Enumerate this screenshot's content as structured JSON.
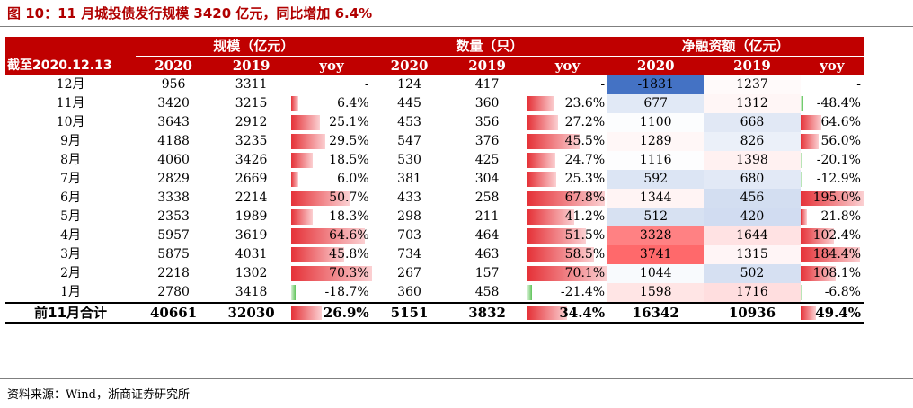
{
  "title": "图 10：11 月城投债发行规模 3420 亿元，同比增加 6.4%",
  "source": "资料来源：Wind，浙商证券研究所",
  "header": {
    "group1": "规模（亿元）",
    "group2": "数量（只）",
    "group3": "净融资额（亿元）",
    "date_label": "截至2020.12.13",
    "col_2020": "2020",
    "col_2019": "2019",
    "col_yoy": "yoy"
  },
  "colors": {
    "header_bg": "#c00000",
    "bar_pos": "#e53238",
    "bar_neg": "#5fc45a",
    "heat_neg": "#4472c4",
    "heat_pos": "#f8696b"
  },
  "rows": [
    {
      "month": "12月",
      "scale_2020": "956",
      "scale_2019": "3311",
      "scale_yoy": "-",
      "scale_yoy_val": null,
      "count_2020": "124",
      "count_2019": "417",
      "count_yoy": "-",
      "count_yoy_val": null,
      "net_2020": "-1831",
      "net_2019": "1237",
      "net_yoy": "-",
      "net_yoy_val": null
    },
    {
      "month": "11月",
      "scale_2020": "3420",
      "scale_2019": "3215",
      "scale_yoy": "6.4%",
      "scale_yoy_val": 6.4,
      "count_2020": "445",
      "count_2019": "360",
      "count_yoy": "23.6%",
      "count_yoy_val": 23.6,
      "net_2020": "677",
      "net_2019": "1312",
      "net_yoy": "-48.4%",
      "net_yoy_val": -48.4
    },
    {
      "month": "10月",
      "scale_2020": "3643",
      "scale_2019": "2912",
      "scale_yoy": "25.1%",
      "scale_yoy_val": 25.1,
      "count_2020": "453",
      "count_2019": "356",
      "count_yoy": "27.2%",
      "count_yoy_val": 27.2,
      "net_2020": "1100",
      "net_2019": "668",
      "net_yoy": "64.6%",
      "net_yoy_val": 64.6
    },
    {
      "month": "9月",
      "scale_2020": "4188",
      "scale_2019": "3235",
      "scale_yoy": "29.5%",
      "scale_yoy_val": 29.5,
      "count_2020": "547",
      "count_2019": "376",
      "count_yoy": "45.5%",
      "count_yoy_val": 45.5,
      "net_2020": "1289",
      "net_2019": "826",
      "net_yoy": "56.0%",
      "net_yoy_val": 56.0
    },
    {
      "month": "8月",
      "scale_2020": "4060",
      "scale_2019": "3426",
      "scale_yoy": "18.5%",
      "scale_yoy_val": 18.5,
      "count_2020": "530",
      "count_2019": "425",
      "count_yoy": "24.7%",
      "count_yoy_val": 24.7,
      "net_2020": "1116",
      "net_2019": "1398",
      "net_yoy": "-20.1%",
      "net_yoy_val": -20.1
    },
    {
      "month": "7月",
      "scale_2020": "2829",
      "scale_2019": "2669",
      "scale_yoy": "6.0%",
      "scale_yoy_val": 6.0,
      "count_2020": "381",
      "count_2019": "304",
      "count_yoy": "25.3%",
      "count_yoy_val": 25.3,
      "net_2020": "592",
      "net_2019": "680",
      "net_yoy": "-12.9%",
      "net_yoy_val": -12.9
    },
    {
      "month": "6月",
      "scale_2020": "3338",
      "scale_2019": "2214",
      "scale_yoy": "50.7%",
      "scale_yoy_val": 50.7,
      "count_2020": "433",
      "count_2019": "258",
      "count_yoy": "67.8%",
      "count_yoy_val": 67.8,
      "net_2020": "1344",
      "net_2019": "456",
      "net_yoy": "195.0%",
      "net_yoy_val": 195.0
    },
    {
      "month": "5月",
      "scale_2020": "2353",
      "scale_2019": "1989",
      "scale_yoy": "18.3%",
      "scale_yoy_val": 18.3,
      "count_2020": "298",
      "count_2019": "211",
      "count_yoy": "41.2%",
      "count_yoy_val": 41.2,
      "net_2020": "512",
      "net_2019": "420",
      "net_yoy": "21.8%",
      "net_yoy_val": 21.8
    },
    {
      "month": "4月",
      "scale_2020": "5957",
      "scale_2019": "3619",
      "scale_yoy": "64.6%",
      "scale_yoy_val": 64.6,
      "count_2020": "703",
      "count_2019": "464",
      "count_yoy": "51.5%",
      "count_yoy_val": 51.5,
      "net_2020": "3328",
      "net_2019": "1644",
      "net_yoy": "102.4%",
      "net_yoy_val": 102.4
    },
    {
      "month": "3月",
      "scale_2020": "5875",
      "scale_2019": "4031",
      "scale_yoy": "45.8%",
      "scale_yoy_val": 45.8,
      "count_2020": "734",
      "count_2019": "463",
      "count_yoy": "58.5%",
      "count_yoy_val": 58.5,
      "net_2020": "3741",
      "net_2019": "1315",
      "net_yoy": "184.4%",
      "net_yoy_val": 184.4
    },
    {
      "month": "2月",
      "scale_2020": "2218",
      "scale_2019": "1302",
      "scale_yoy": "70.3%",
      "scale_yoy_val": 70.3,
      "count_2020": "267",
      "count_2019": "157",
      "count_yoy": "70.1%",
      "count_yoy_val": 70.1,
      "net_2020": "1044",
      "net_2019": "502",
      "net_yoy": "108.1%",
      "net_yoy_val": 108.1
    },
    {
      "month": "1月",
      "scale_2020": "2780",
      "scale_2019": "3418",
      "scale_yoy": "-18.7%",
      "scale_yoy_val": -18.7,
      "count_2020": "360",
      "count_2019": "458",
      "count_yoy": "-21.4%",
      "count_yoy_val": -21.4,
      "net_2020": "1598",
      "net_2019": "1716",
      "net_yoy": "-6.8%",
      "net_yoy_val": -6.8
    }
  ],
  "total": {
    "label": "前11月合计",
    "scale_2020": "40661",
    "scale_2019": "32030",
    "scale_yoy": "26.9%",
    "scale_yoy_val": 26.9,
    "count_2020": "5151",
    "count_2019": "3832",
    "count_yoy": "34.4%",
    "count_yoy_val": 34.4,
    "net_2020": "16342",
    "net_2019": "10936",
    "net_yoy": "49.4%",
    "net_yoy_val": 49.4
  }
}
